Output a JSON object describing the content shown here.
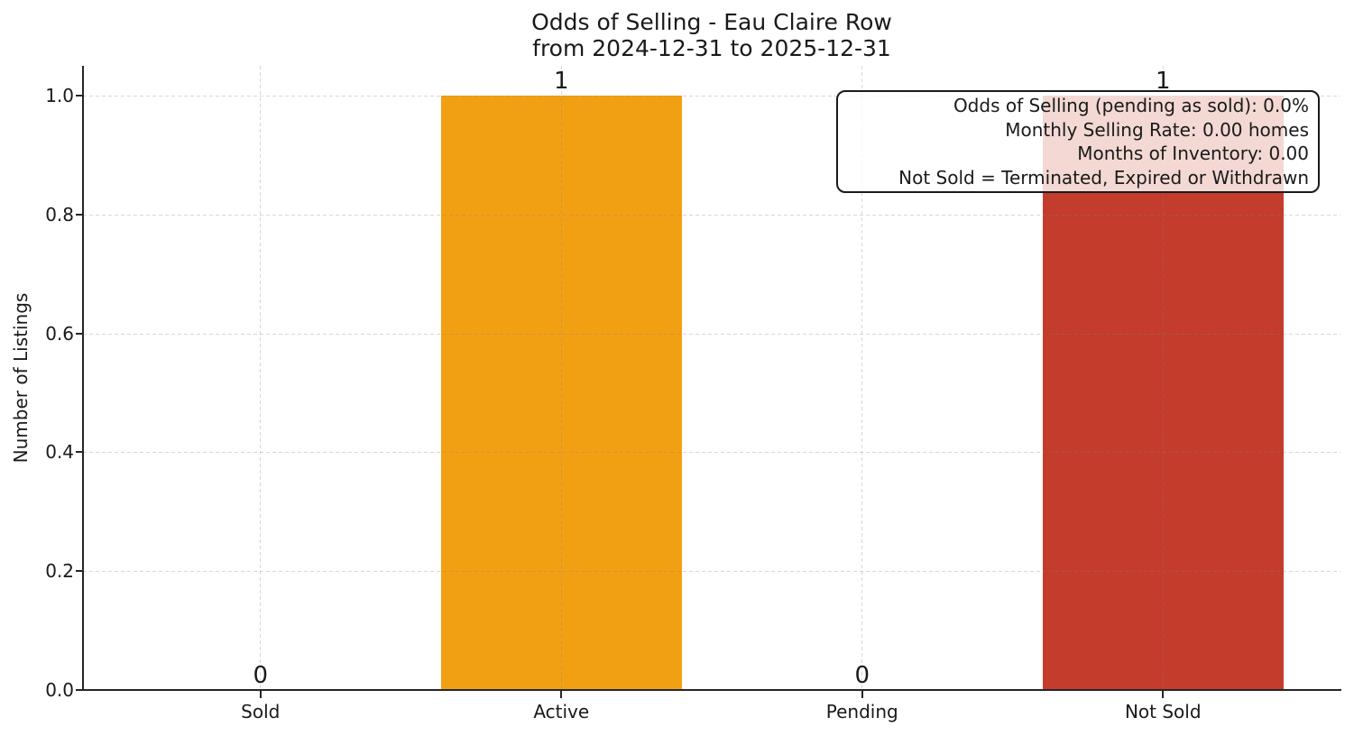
{
  "page": {
    "background": "#ffffff"
  },
  "chart_data": {
    "type": "bar",
    "title": "Odds of Selling - Eau Claire Row",
    "subtitle": "from 2024-12-31 to 2025-12-31",
    "xlabel": "",
    "ylabel": "Number of Listings",
    "categories": [
      "Sold",
      "Active",
      "Pending",
      "Not Sold"
    ],
    "values": [
      0,
      1,
      0,
      1
    ],
    "bar_value_labels": [
      "0",
      "1",
      "0",
      "1"
    ],
    "bar_colors": [
      null,
      "#F2A013",
      null,
      "#C33C2C"
    ],
    "ylim": [
      0,
      1.05
    ],
    "y_ticks": [
      "0.0",
      "0.2",
      "0.4",
      "0.6",
      "0.8",
      "1.0"
    ],
    "grid": "dashed gridlines on both axes",
    "legend_position": "none",
    "text_color": "#1a1a1a",
    "annotation": {
      "lines": [
        "Odds of Selling (pending as sold): 0.0%",
        "Monthly Selling Rate: 0.00 homes",
        "Months of Inventory: 0.00",
        "Not Sold = Terminated, Expired or Withdrawn"
      ]
    }
  }
}
